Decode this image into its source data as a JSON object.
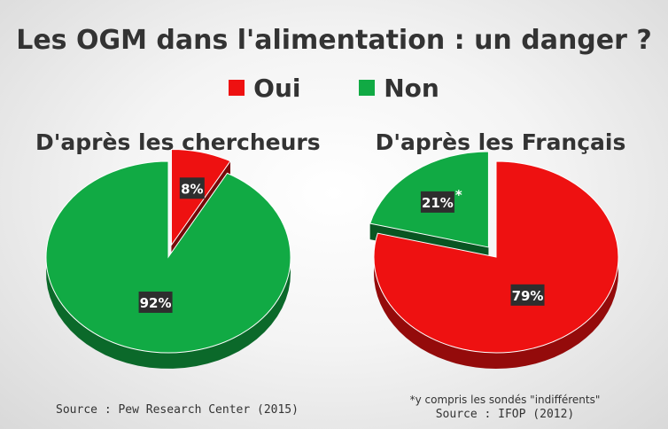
{
  "chart_data": [
    {
      "type": "pie",
      "title": "Les OGM dans l'alimentation : un danger ?",
      "subtitle": "D'après les chercheurs",
      "source": "Source : Pew Research Center (2015)",
      "slices": [
        {
          "label": "Oui",
          "value": 8,
          "display": "8%",
          "color": "#ee1111",
          "exploded": true
        },
        {
          "label": "Non",
          "value": 92,
          "display": "92%",
          "color": "#11aa44",
          "exploded": false
        }
      ]
    },
    {
      "type": "pie",
      "title": "Les OGM dans l'alimentation : un danger ?",
      "subtitle": "D'après les Français",
      "source": "Source : IFOP (2012)",
      "note": "*y compris les sondés \"indifférents\"",
      "slices": [
        {
          "label": "Oui",
          "value": 79,
          "display": "79%",
          "color": "#ee1111",
          "exploded": false
        },
        {
          "label": "Non",
          "value": 21,
          "display": "21%",
          "color": "#11aa44",
          "exploded": true,
          "marker": "*"
        }
      ]
    }
  ],
  "legend": [
    {
      "label": "Oui",
      "color": "#ee1111"
    },
    {
      "label": "Non",
      "color": "#11aa44"
    }
  ]
}
